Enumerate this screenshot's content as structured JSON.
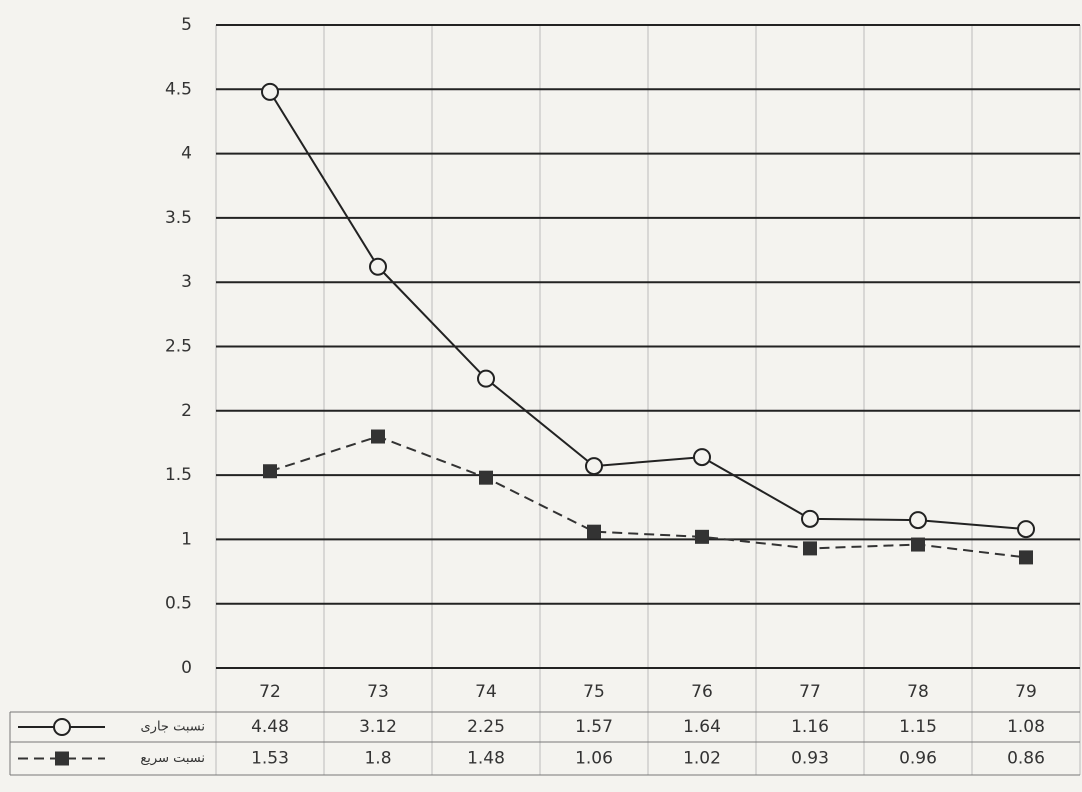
{
  "chart_data": {
    "type": "line",
    "categories": [
      "72",
      "73",
      "74",
      "75",
      "76",
      "77",
      "78",
      "79"
    ],
    "series": [
      {
        "name": "نسبت جاری",
        "color": "#222222",
        "line_style": "solid",
        "marker": "circle",
        "values": [
          4.48,
          3.12,
          2.25,
          1.57,
          1.64,
          1.16,
          1.15,
          1.08
        ]
      },
      {
        "name": "نسبت سریع",
        "color": "#333333",
        "line_style": "dashed",
        "marker": "square",
        "values": [
          1.53,
          1.8,
          1.48,
          1.06,
          1.02,
          0.93,
          0.96,
          0.86
        ]
      }
    ],
    "ylim": [
      0,
      5
    ],
    "yticks": [
      0,
      0.5,
      1,
      1.5,
      2,
      2.5,
      3,
      3.5,
      4,
      4.5,
      5
    ],
    "grid": true,
    "data_table": true
  }
}
